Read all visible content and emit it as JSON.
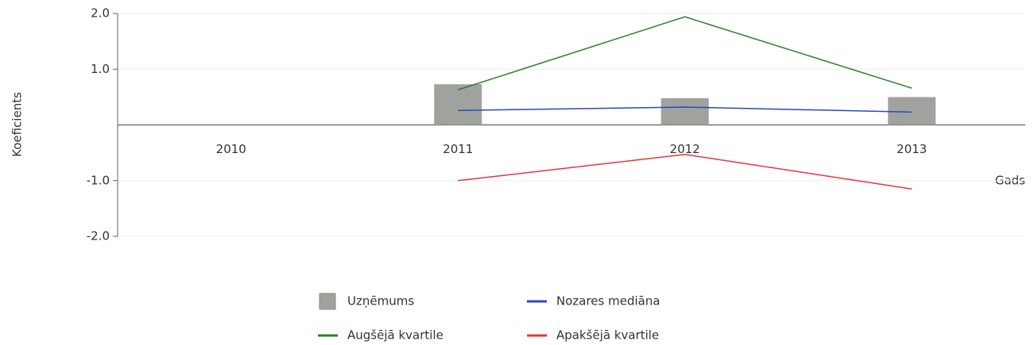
{
  "chart_data": {
    "type": "bar-line",
    "y_label": "Koeficients",
    "x_label": "Gads",
    "categories": [
      "2010",
      "2011",
      "2012",
      "2013"
    ],
    "series": [
      {
        "name": "Uzņēmums",
        "type": "bar",
        "color": "#a0a29e",
        "values": [
          null,
          0.73,
          0.48,
          0.5
        ]
      },
      {
        "name": "Nozares mediāna",
        "type": "line",
        "color": "#2b48bd",
        "values": [
          null,
          0.26,
          0.32,
          0.23
        ]
      },
      {
        "name": "Augšējā kvartile",
        "type": "line",
        "color": "#2e7d32",
        "values": [
          null,
          0.63,
          1.94,
          0.66
        ]
      },
      {
        "name": "Apakšējā kvartile",
        "type": "line",
        "color": "#e8343c",
        "values": [
          null,
          -1.0,
          -0.53,
          -1.15
        ]
      }
    ],
    "ylim": [
      -2,
      2
    ],
    "yticks": [
      {
        "value": -2,
        "label": "-2.0"
      },
      {
        "value": -1,
        "label": "-1.0"
      },
      {
        "value": 1,
        "label": "1.0"
      },
      {
        "value": 2,
        "label": "2.0"
      }
    ],
    "grid": true
  }
}
